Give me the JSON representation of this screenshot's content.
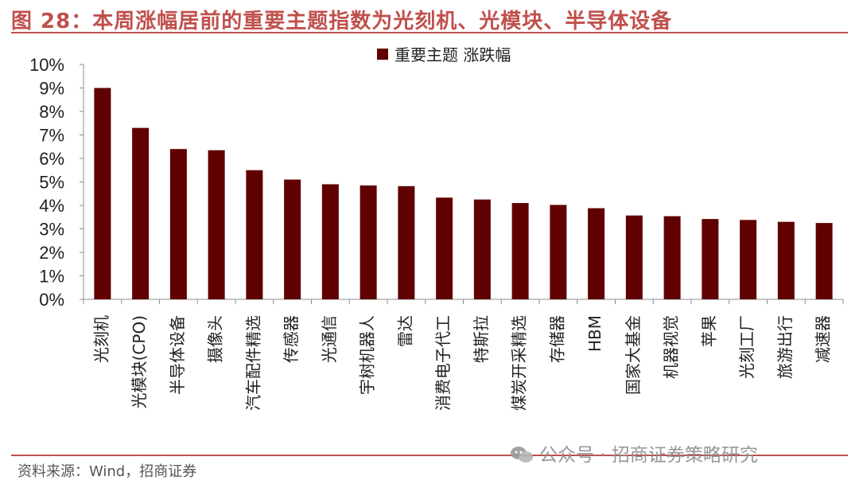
{
  "header": {
    "title": "图 28：本周涨幅居前的重要主题指数为光刻机、光模块、半导体设备"
  },
  "footer": {
    "source": "资料来源：Wind，招商证券",
    "watermark": "公众号 · 招商证券策略研究"
  },
  "colors": {
    "bar": "#600000",
    "accent": "#c0504d",
    "axis": "#8c8c8c"
  },
  "chart_data": {
    "type": "bar",
    "legend_position": "top-center",
    "grid": false,
    "ylim": [
      0,
      10
    ],
    "yticks": [
      "0%",
      "1%",
      "2%",
      "3%",
      "4%",
      "5%",
      "6%",
      "7%",
      "8%",
      "9%",
      "10%"
    ],
    "categories": [
      "光刻机",
      "光模块(CPO)",
      "半导体设备",
      "摄像头",
      "汽车配件精选",
      "传感器",
      "光通信",
      "宇树机器人",
      "雷达",
      "消费电子代工",
      "特斯拉",
      "煤炭开采精选",
      "存储器",
      "HBM",
      "国家大基金",
      "机器视觉",
      "苹果",
      "光刻工厂",
      "旅游出行",
      "减速器"
    ],
    "series": [
      {
        "name": "重要主题 涨跌幅",
        "values": [
          9.0,
          7.3,
          6.4,
          6.35,
          5.5,
          5.1,
          4.9,
          4.85,
          4.82,
          4.33,
          4.25,
          4.1,
          4.02,
          3.88,
          3.57,
          3.54,
          3.42,
          3.38,
          3.3,
          3.25
        ]
      }
    ]
  }
}
